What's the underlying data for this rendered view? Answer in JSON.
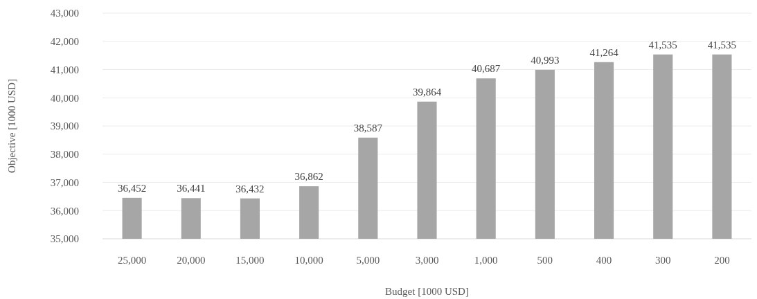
{
  "chart_data": {
    "type": "bar",
    "xlabel": "Budget [1000 USD]",
    "ylabel": "Objective [1000 USD]",
    "categories": [
      "25,000",
      "20,000",
      "15,000",
      "10,000",
      "5,000",
      "3,000",
      "1,000",
      "500",
      "400",
      "300",
      "200"
    ],
    "values": [
      36452,
      36441,
      36432,
      36862,
      38587,
      39864,
      40687,
      40993,
      41264,
      41535,
      41535
    ],
    "color": "#a6a6a6",
    "ylim": [
      35000,
      43000
    ],
    "yticks": [
      {
        "value": 35000,
        "label": "35,000"
      },
      {
        "value": 36000,
        "label": "36,000"
      },
      {
        "value": 37000,
        "label": "37,000"
      },
      {
        "value": 38000,
        "label": "38,000"
      },
      {
        "value": 39000,
        "label": "39,000"
      },
      {
        "value": 40000,
        "label": "40,000"
      },
      {
        "value": 41000,
        "label": "41,000"
      },
      {
        "value": 42000,
        "label": "42,000"
      },
      {
        "value": 43000,
        "label": "43,000"
      }
    ],
    "value_labels": [
      "36,452",
      "36,441",
      "36,432",
      "36,862",
      "38,587",
      "39,864",
      "40,687",
      "40,993",
      "41,264",
      "41,535",
      "41,535"
    ],
    "grid": "y"
  }
}
